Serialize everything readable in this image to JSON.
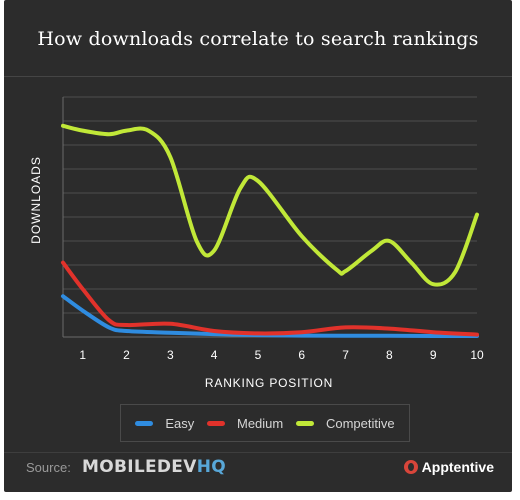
{
  "title": "How downloads correlate to search rankings",
  "colors": {
    "background": "#2c2c2c",
    "easy": "#2f8ce0",
    "medium": "#e1322b",
    "competitive": "#c1e838",
    "grid": "#4e4e4e"
  },
  "chart_data": {
    "type": "line",
    "title": "How downloads correlate to search rankings",
    "xlabel": "RANKING POSITION",
    "ylabel": "DOWNLOADS",
    "x": [
      "1",
      "2",
      "3",
      "4",
      "5",
      "6",
      "7",
      "8",
      "9",
      "10"
    ],
    "xlim": [
      0.55,
      10
    ],
    "ylim": [
      0,
      100
    ],
    "y_tick_labels_shown": false,
    "grid": true,
    "legend_position": "bottom",
    "series": [
      {
        "name": "Easy",
        "color": "#2f8ce0",
        "x": [
          0.55,
          1,
          1.6,
          2,
          3,
          4,
          5,
          6,
          7,
          8,
          9,
          10
        ],
        "values": [
          17,
          11,
          4,
          2.5,
          1.8,
          1.2,
          0.8,
          0.6,
          0.5,
          0.5,
          0.4,
          0.4
        ]
      },
      {
        "name": "Medium",
        "color": "#e1322b",
        "x": [
          0.55,
          1,
          1.6,
          2,
          3,
          4,
          5,
          6,
          7,
          8,
          9,
          10
        ],
        "values": [
          31,
          20,
          7,
          5,
          5.5,
          2.5,
          1.5,
          2,
          4,
          3.5,
          2,
          1
        ]
      },
      {
        "name": "Competitive",
        "color": "#c1e838",
        "x": [
          0.55,
          1,
          1.6,
          2,
          2.5,
          3,
          3.6,
          4,
          4.6,
          5,
          6,
          6.8,
          7,
          7.6,
          8,
          8.5,
          9,
          9.5,
          10
        ],
        "values": [
          88,
          86,
          84.5,
          86,
          86,
          75,
          40,
          36,
          62,
          65,
          42,
          28,
          27.5,
          36,
          40,
          31,
          22,
          27,
          51
        ]
      }
    ]
  },
  "source": {
    "label": "Source:",
    "brand_a": "MOBILEDEV",
    "brand_b": "HQ"
  },
  "credit": {
    "label": "Apptentive"
  }
}
